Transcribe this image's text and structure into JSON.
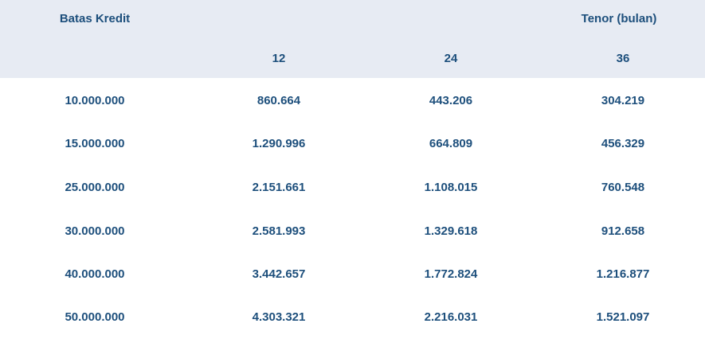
{
  "header": {
    "left_title": "Batas Kredit",
    "right_title": "Tenor (bulan)",
    "columns": [
      "12",
      "24",
      "36"
    ]
  },
  "table": {
    "rows": [
      [
        "10.000.000",
        "860.664",
        "443.206",
        "304.219"
      ],
      [
        "15.000.000",
        "1.290.996",
        "664.809",
        "456.329"
      ],
      [
        "25.000.000",
        "2.151.661",
        "1.108.015",
        "760.548"
      ],
      [
        "30.000.000",
        "2.581.993",
        "1.329.618",
        "912.658"
      ],
      [
        "40.000.000",
        "3.442.657",
        "1.772.824",
        "1.216.877"
      ],
      [
        "50.000.000",
        "4.303.321",
        "2.216.031",
        "1.521.097"
      ]
    ]
  }
}
